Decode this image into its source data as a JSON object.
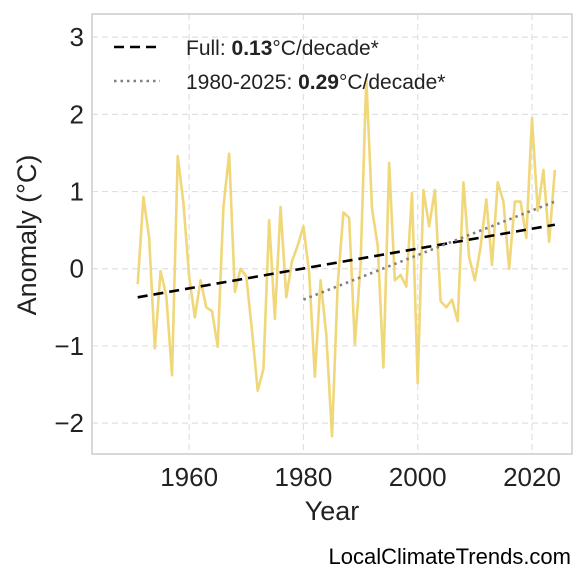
{
  "credit": "LocalClimateTrends.com",
  "chart_data": {
    "type": "line",
    "xlabel": "Year",
    "ylabel": "Anomaly (°C)",
    "xlim": [
      1943,
      2027
    ],
    "ylim": [
      -2.4,
      3.3
    ],
    "xticks": [
      1960,
      1980,
      2000,
      2020
    ],
    "yticks": [
      3,
      2,
      1,
      0,
      -1,
      -2
    ],
    "ytick_labels": [
      "3",
      "2",
      "1",
      "0",
      "−1",
      "−2"
    ],
    "grid": true,
    "legend_position": "top-left",
    "colors": {
      "series": "#f0d77a",
      "full_trend": "#000000",
      "recent_trend": "#808080"
    },
    "series": [
      {
        "x": [
          1951,
          1952,
          1953,
          1954,
          1955,
          1956,
          1957,
          1958,
          1959,
          1960,
          1961,
          1962,
          1963,
          1964,
          1965,
          1966,
          1967,
          1968,
          1969,
          1970,
          1971,
          1972,
          1973,
          1974,
          1975,
          1976,
          1977,
          1978,
          1979,
          1980,
          1981,
          1982,
          1983,
          1984,
          1985,
          1986,
          1987,
          1988,
          1989,
          1990,
          1991,
          1992,
          1993,
          1994,
          1995,
          1996,
          1997,
          1998,
          1999,
          2000,
          2001,
          2002,
          2003,
          2004,
          2005,
          2006,
          2007,
          2008,
          2009,
          2010,
          2011,
          2012,
          2013,
          2014,
          2015,
          2016,
          2017,
          2018,
          2019,
          2020,
          2021,
          2022,
          2023,
          2024
        ],
        "values": [
          -0.2,
          0.93,
          0.4,
          -1.03,
          -0.03,
          -0.35,
          -1.38,
          1.46,
          0.85,
          -0.1,
          -0.63,
          -0.15,
          -0.5,
          -0.55,
          -1.01,
          0.8,
          1.49,
          -0.3,
          0.0,
          -0.1,
          -0.8,
          -1.58,
          -1.3,
          0.63,
          -0.65,
          0.8,
          -0.37,
          0.1,
          0.3,
          0.55,
          -0.05,
          -1.4,
          -0.15,
          -0.85,
          -2.17,
          -0.2,
          0.73,
          0.66,
          -0.98,
          0.05,
          2.47,
          0.78,
          0.3,
          -1.28,
          1.37,
          -0.15,
          -0.08,
          -0.23,
          0.98,
          -1.48,
          1.02,
          0.55,
          1.02,
          -0.42,
          -0.5,
          -0.4,
          -0.68,
          1.12,
          0.15,
          -0.15,
          0.28,
          0.9,
          0.05,
          1.12,
          0.87,
          0.0,
          0.87,
          0.87,
          0.4,
          1.95,
          0.75,
          1.28,
          0.35,
          1.28
        ]
      }
    ],
    "trends": [
      {
        "name": "Full",
        "rate": "0.13",
        "unit": "°C/decade*",
        "style": "dashed",
        "x": [
          1951,
          2024
        ],
        "values": [
          -0.37,
          0.57
        ]
      },
      {
        "name": "1980-2025",
        "rate": "0.29",
        "unit": "°C/decade*",
        "style": "dotted",
        "x": [
          1980,
          2024
        ],
        "values": [
          -0.4,
          0.87
        ]
      }
    ]
  }
}
